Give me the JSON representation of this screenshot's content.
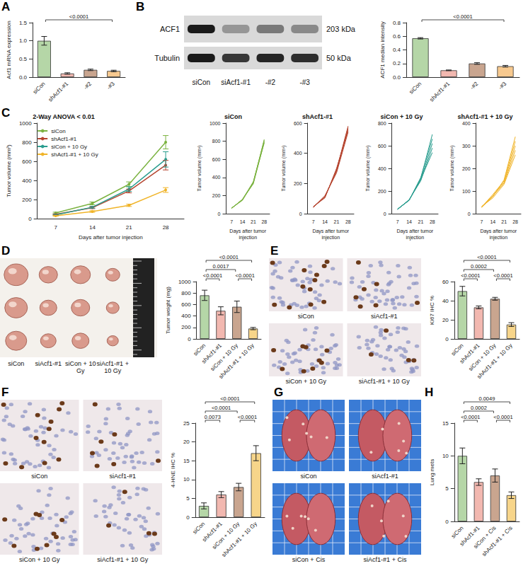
{
  "chart_data": [
    {
      "panel": "A",
      "type": "bar",
      "ylabel": "Acf1 mRNA expression",
      "categories": [
        "siCon",
        "shAcf1-#1",
        "-#2",
        "-#3"
      ],
      "values": [
        1.0,
        0.1,
        0.2,
        0.17
      ],
      "errors": [
        0.12,
        0.02,
        0.02,
        0.02
      ],
      "colors": [
        "#b5d6a7",
        "#f2b8b0",
        "#c9a58f",
        "#f7c98f"
      ],
      "ylim": [
        0,
        1.5
      ],
      "yticks": [
        {
          "value": 0,
          "label": "0.0"
        },
        {
          "value": 0.5,
          "label": "0.5"
        },
        {
          "value": 1,
          "label": "1.0"
        },
        {
          "value": 1.5,
          "label": "1.5"
        }
      ],
      "comparisons": [
        {
          "between": [
            "siCon",
            "-#3"
          ],
          "label": "<0.0001"
        }
      ]
    },
    {
      "type": "bar",
      "ylabel": "ACF1 median intensity",
      "categories": [
        "siCon",
        "shAcf1-#1",
        "-#2",
        "-#3"
      ],
      "values": [
        0.57,
        0.1,
        0.2,
        0.16
      ],
      "errors": [
        0.01,
        0.005,
        0.012,
        0.012
      ],
      "colors": [
        "#b5d6a7",
        "#f2b8b0",
        "#c9a58f",
        "#f7c98f"
      ],
      "ylim": [
        0,
        0.8
      ],
      "yticks": [
        {
          "value": 0,
          "label": "0.0"
        },
        {
          "value": 0.2,
          "label": "0.2"
        },
        {
          "value": 0.4,
          "label": "0.4"
        },
        {
          "value": 0.6,
          "label": "0.6"
        },
        {
          "value": 0.8,
          "label": "0.8"
        }
      ],
      "comparisons": [
        {
          "between": [
            "siCon",
            "-#3"
          ],
          "label": "<0.0001"
        }
      ]
    },
    {
      "panel": "C",
      "type": "line",
      "title": "2-Way ANOVA < 0.01",
      "xlabel": "Days after tumor injection",
      "ylabel": "Tumor volume (mm³)",
      "categories": [
        "7",
        "14",
        "21",
        "28"
      ],
      "ylim": [
        0,
        1000
      ],
      "yticks": [
        0,
        200,
        400,
        600,
        800,
        1000
      ],
      "legend": "top-left",
      "marker": "circle",
      "series": [
        {
          "name": "siCon",
          "color": "#7cb342",
          "values": [
            60,
            160,
            360,
            800
          ],
          "errors": [
            8,
            15,
            25,
            70
          ]
        },
        {
          "name": "shAcf1-#1",
          "color": "#b5442f",
          "values": [
            45,
            115,
            290,
            560
          ],
          "errors": [
            5,
            10,
            20,
            50
          ]
        },
        {
          "name": "siCon + 10 Gy",
          "color": "#2a9d8f",
          "values": [
            40,
            120,
            310,
            620
          ],
          "errors": [
            5,
            10,
            25,
            80
          ]
        },
        {
          "name": "shAcf1-#1 + 10 Gy",
          "color": "#f0b429",
          "values": [
            30,
            75,
            140,
            300
          ],
          "errors": [
            4,
            8,
            12,
            25
          ]
        }
      ]
    },
    {
      "type": "line",
      "title": "siCon",
      "xlabel": "Days after tumor injection",
      "ylabel": "Tumor volume (mm³)",
      "categories": [
        "7",
        "14",
        "21",
        "28"
      ],
      "ylim": [
        0,
        1000
      ],
      "yticks": [
        0,
        200,
        400,
        600,
        800,
        1000
      ],
      "color": "#7cb342",
      "series": [
        {
          "values": [
            60,
            150,
            340,
            820
          ]
        },
        {
          "values": [
            62,
            155,
            345,
            800
          ]
        },
        {
          "values": [
            58,
            160,
            350,
            780
          ]
        },
        {
          "values": [
            65,
            148,
            355,
            810
          ]
        },
        {
          "values": [
            60,
            158,
            330,
            790
          ]
        }
      ]
    },
    {
      "type": "line",
      "title": "shAcf1-#1",
      "xlabel": "Days after tumor injection",
      "ylabel": "Tumor volume (mm³)",
      "categories": [
        "7",
        "14",
        "21",
        "28"
      ],
      "ylim": [
        0,
        600
      ],
      "yticks": [
        0,
        200,
        400,
        600
      ],
      "color": "#b5442f",
      "series": [
        {
          "values": [
            45,
            110,
            290,
            580
          ]
        },
        {
          "values": [
            42,
            115,
            280,
            560
          ]
        },
        {
          "values": [
            48,
            105,
            300,
            550
          ]
        },
        {
          "values": [
            44,
            120,
            270,
            540
          ]
        },
        {
          "values": [
            46,
            112,
            285,
            570
          ]
        }
      ]
    },
    {
      "type": "line",
      "title": "siCon + 10 Gy",
      "xlabel": "Days after tumor injection",
      "ylabel": "Tumor volume (mm³)",
      "categories": [
        "7",
        "14",
        "21",
        "28"
      ],
      "ylim": [
        0,
        800
      ],
      "yticks": [
        0,
        200,
        400,
        600,
        800
      ],
      "color": "#2a9d8f",
      "series": [
        {
          "values": [
            40,
            120,
            300,
            620
          ]
        },
        {
          "values": [
            42,
            118,
            320,
            660
          ]
        },
        {
          "values": [
            38,
            125,
            290,
            580
          ]
        },
        {
          "values": [
            41,
            122,
            310,
            700
          ]
        },
        {
          "values": [
            39,
            119,
            305,
            540
          ]
        }
      ]
    },
    {
      "type": "line",
      "title": "shAcf1-#1 + 10 Gy",
      "xlabel": "Days after tumor injection",
      "ylabel": "Tumor volume (mm³)",
      "categories": [
        "7",
        "14",
        "21",
        "28"
      ],
      "ylim": [
        0,
        400
      ],
      "yticks": [
        0,
        100,
        200,
        300,
        400
      ],
      "color": "#f0b429",
      "series": [
        {
          "values": [
            30,
            80,
            140,
            300
          ]
        },
        {
          "values": [
            28,
            75,
            150,
            340
          ]
        },
        {
          "values": [
            32,
            70,
            130,
            260
          ]
        },
        {
          "values": [
            29,
            85,
            145,
            320
          ]
        },
        {
          "values": [
            31,
            78,
            135,
            280
          ]
        }
      ]
    },
    {
      "type": "bar",
      "ylabel": "Tumor weight (mg)",
      "categories": [
        "siCon",
        "shAcf1-#1",
        "siCon + 10 Gy",
        "shAcf1-#1 + 10 Gy"
      ],
      "values": [
        760,
        490,
        560,
        180
      ],
      "errors": [
        90,
        70,
        100,
        20
      ],
      "colors": [
        "#b5d6a7",
        "#f2b8b0",
        "#c9a58f",
        "#f7d58a"
      ],
      "ylim": [
        0,
        1000
      ],
      "yticks": [
        0,
        200,
        400,
        600,
        800,
        1000
      ],
      "comparisons": [
        {
          "between": [
            "siCon",
            "shAcf1-#1"
          ],
          "label": "<0.0001"
        },
        {
          "between": [
            "siCon + 10 Gy",
            "shAcf1-#1 + 10 Gy"
          ],
          "label": "<0.0001"
        },
        {
          "between": [
            "siCon",
            "siCon + 10 Gy"
          ],
          "label": "0.0017"
        },
        {
          "between": [
            "siCon",
            "shAcf1-#1 + 10 Gy"
          ],
          "label": "<0.0001"
        }
      ]
    },
    {
      "type": "bar",
      "ylabel": "Ki67 IHC %",
      "categories": [
        "siCon",
        "shAcf1-#1",
        "siCon + 10 Gy",
        "shAcf1-#1 + 10 Gy"
      ],
      "values": [
        50,
        33,
        42,
        15
      ],
      "errors": [
        5,
        1.5,
        1.5,
        2
      ],
      "colors": [
        "#b5d6a7",
        "#f2b8b0",
        "#c9a58f",
        "#f7d58a"
      ],
      "ylim": [
        0,
        60
      ],
      "yticks": [
        0,
        20,
        40,
        60
      ],
      "comparisons": [
        {
          "between": [
            "siCon",
            "shAcf1-#1"
          ],
          "label": "<0.0001"
        },
        {
          "between": [
            "siCon + 10 Gy",
            "shAcf1-#1 + 10 Gy"
          ],
          "label": "<0.0001"
        },
        {
          "between": [
            "siCon",
            "siCon + 10 Gy"
          ],
          "label": "0.0002"
        },
        {
          "between": [
            "siCon",
            "shAcf1-#1 + 10 Gy"
          ],
          "label": "<0.0001"
        }
      ]
    },
    {
      "type": "bar",
      "ylabel": "4-HNE IHC %",
      "categories": [
        "siCon",
        "shAcf1-#1",
        "siCon + 10 Gy",
        "shAcf1-#1 + 10 Gy"
      ],
      "values": [
        3,
        6,
        8,
        17
      ],
      "errors": [
        0.8,
        0.8,
        1,
        2
      ],
      "colors": [
        "#b5d6a7",
        "#f2b8b0",
        "#c9a58f",
        "#f7d58a"
      ],
      "ylim": [
        0,
        25
      ],
      "yticks": [
        0,
        5,
        10,
        15,
        20,
        25
      ],
      "comparisons": [
        {
          "between": [
            "siCon",
            "shAcf1-#1"
          ],
          "label": "0.0073"
        },
        {
          "between": [
            "siCon + 10 Gy",
            "shAcf1-#1 + 10 Gy"
          ],
          "label": "<0.0001"
        },
        {
          "between": [
            "siCon",
            "siCon + 10 Gy"
          ],
          "label": "<0.0001"
        },
        {
          "between": [
            "siCon",
            "shAcf1-#1 + 10 Gy"
          ],
          "label": "<0.0001"
        }
      ]
    },
    {
      "panel": "H",
      "type": "bar",
      "ylabel": "Lung mets",
      "categories": [
        "siCon",
        "shAcf1-#1",
        "siCon + Cis",
        "shAcf1-#1 + Cis"
      ],
      "values": [
        10,
        6,
        7,
        4
      ],
      "errors": [
        1.2,
        0.5,
        1,
        0.5
      ],
      "colors": [
        "#b5d6a7",
        "#f2b8b0",
        "#c9a58f",
        "#f7d58a"
      ],
      "ylim": [
        0,
        15
      ],
      "yticks": [
        0,
        5,
        10,
        15
      ],
      "comparisons": [
        {
          "between": [
            "siCon",
            "shAcf1-#1"
          ],
          "label": "<0.0001"
        },
        {
          "between": [
            "siCon + Cis",
            "shAcf1-#1 + Cis"
          ],
          "label": "<0.0001"
        },
        {
          "between": [
            "siCon",
            "siCon + Cis"
          ],
          "label": "0.0002"
        },
        {
          "between": [
            "siCon",
            "shAcf1-#1 + Cis"
          ],
          "label": "0.0049"
        }
      ]
    }
  ],
  "images": [
    {
      "panel": "B",
      "kind": "blot",
      "rows": [
        {
          "label": "ACF1",
          "size": "203 kDa"
        },
        {
          "label": "Tubulin",
          "size": "50 kDa"
        }
      ],
      "lanes": [
        "siCon",
        "siAcf1-#1",
        "-#2",
        "-#3"
      ]
    },
    {
      "panel": "D",
      "kind": "tumors",
      "labels": [
        "siCon",
        "siAcf1-#1",
        "siCon + 10 Gy",
        "siAcf1-#1 + 10 Gy"
      ]
    },
    {
      "panel": "E",
      "kind": "ihc",
      "labels": [
        "siCon",
        "siAcf1-#1",
        "siCon + 10 Gy",
        "siAcf1-#1 + 10 Gy"
      ]
    },
    {
      "panel": "F",
      "kind": "ihc",
      "labels": [
        "siCon",
        "siAcf1-#1",
        "siCon + 10 Gy",
        "siAcf1-#1 + 10 Gy"
      ]
    },
    {
      "panel": "G",
      "kind": "lungs",
      "labels": [
        "siCon",
        "siAcf1-#1",
        "siCon + Cis",
        "siAcf1-#1 + Cis"
      ]
    }
  ]
}
